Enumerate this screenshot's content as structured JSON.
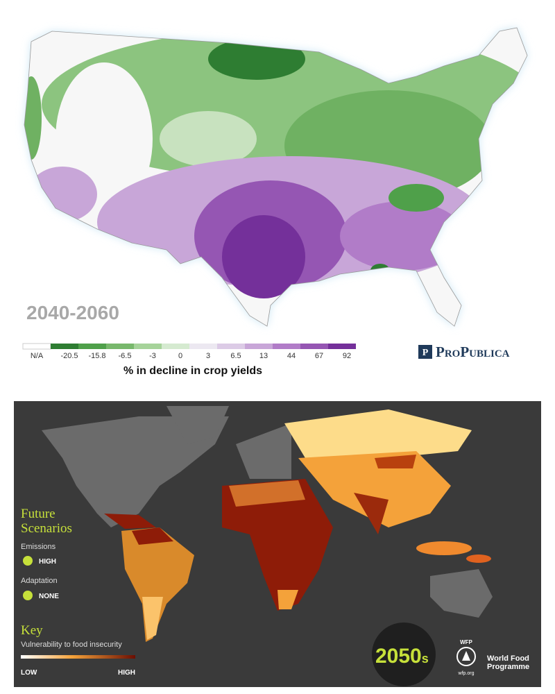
{
  "us_map": {
    "period": "2040-2060",
    "legend": {
      "labels": [
        "N/A",
        "-20.5",
        "-15.8",
        "-6.5",
        "-3",
        "0",
        "3",
        "6.5",
        "13",
        "44",
        "67",
        "92"
      ],
      "colors": [
        "#ffffff",
        "#2e7d32",
        "#4fa04a",
        "#78b86c",
        "#a6d39a",
        "#d5ead0",
        "#ece8f1",
        "#dccbe6",
        "#c8a6d8",
        "#b17cc8",
        "#9556b3",
        "#74309a"
      ]
    },
    "caption": "% in decline in crop yields"
  },
  "logo": "ProPublica",
  "world_map": {
    "heading": [
      "Future",
      "Scenarios"
    ],
    "emissions": {
      "label": "Emissions",
      "value": "HIGH"
    },
    "adaptation": {
      "label": "Adaptation",
      "value": "NONE"
    },
    "key": {
      "title": "Key",
      "subtitle": "Vulnerability to food insecurity",
      "low": "LOW",
      "high": "HIGH"
    },
    "decade": {
      "number": "2050",
      "suffix": "s"
    },
    "wfp": {
      "acronym": "WFP",
      "name": [
        "World Food",
        "Programme"
      ],
      "url": "wfp.org"
    }
  }
}
